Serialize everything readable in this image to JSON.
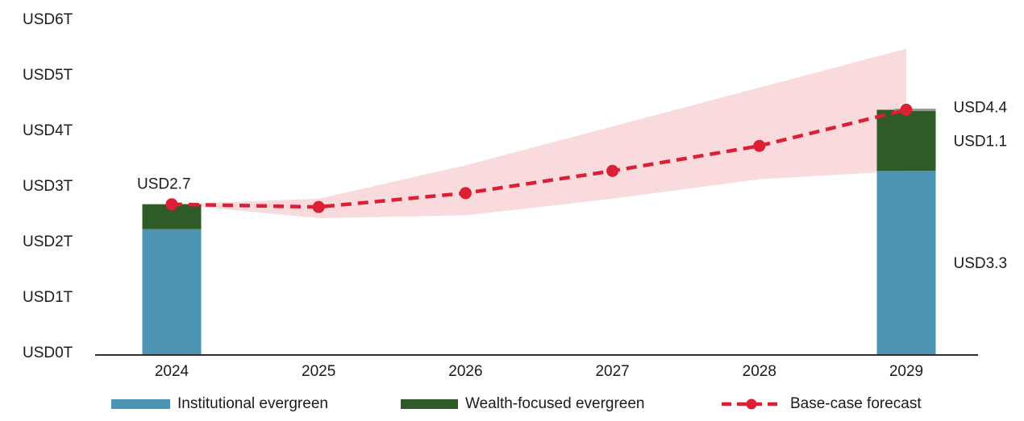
{
  "figure": {
    "background": "#ffffff",
    "text_color": "#1b1b1b",
    "axis_color": "#2e2e2e"
  },
  "chart_data": {
    "type": "combo-stacked-bar-line",
    "title": "",
    "unit": "USD trillions",
    "x_categories": [
      "2024",
      "2025",
      "2026",
      "2027",
      "2028",
      "2029"
    ],
    "y_axis": {
      "min": 0,
      "max": 6,
      "tick_labels": [
        "USD0T",
        "USD1T",
        "USD2T",
        "USD3T",
        "USD4T",
        "USD5T",
        "USD6T"
      ]
    },
    "bars": {
      "years": [
        "2024",
        "2029"
      ],
      "series": [
        {
          "name": "Institutional evergreen",
          "color": "#4C93B4",
          "values": {
            "2024": 2.25,
            "2029": 3.3
          }
        },
        {
          "name": "Wealth-focused evergreen",
          "color": "#2E5B28",
          "values": {
            "2024": 0.45,
            "2029": 1.1
          }
        }
      ],
      "totals": {
        "2024": 2.7,
        "2029": 4.4
      },
      "top_cap_color": "#9B9B9B"
    },
    "forecast_line": {
      "name": "Base-case forecast",
      "color": "#DB1F35",
      "style": "dashed",
      "values": [
        2.7,
        2.65,
        2.9,
        3.3,
        3.75,
        4.4
      ]
    },
    "forecast_band": {
      "color": "#FADBDD",
      "upper": [
        2.7,
        2.8,
        3.4,
        4.1,
        4.8,
        5.5
      ],
      "lower": [
        2.7,
        2.45,
        2.5,
        2.8,
        3.15,
        3.3
      ]
    },
    "annotations": [
      {
        "text": "USD2.7",
        "anchor": "total-2024"
      },
      {
        "text": "USD4.4",
        "anchor": "total-2029"
      },
      {
        "text": "USD1.1",
        "anchor": "wealth-2029"
      },
      {
        "text": "USD3.3",
        "anchor": "institutional-2029"
      }
    ]
  },
  "legend": {
    "items": [
      {
        "label": "Institutional evergreen",
        "swatch": "rect",
        "color": "#4C93B4"
      },
      {
        "label": "Wealth-focused evergreen",
        "swatch": "rect",
        "color": "#2E5B28"
      },
      {
        "label": "Base-case forecast",
        "swatch": "dashed-line-dot",
        "color": "#DB1F35"
      }
    ]
  }
}
